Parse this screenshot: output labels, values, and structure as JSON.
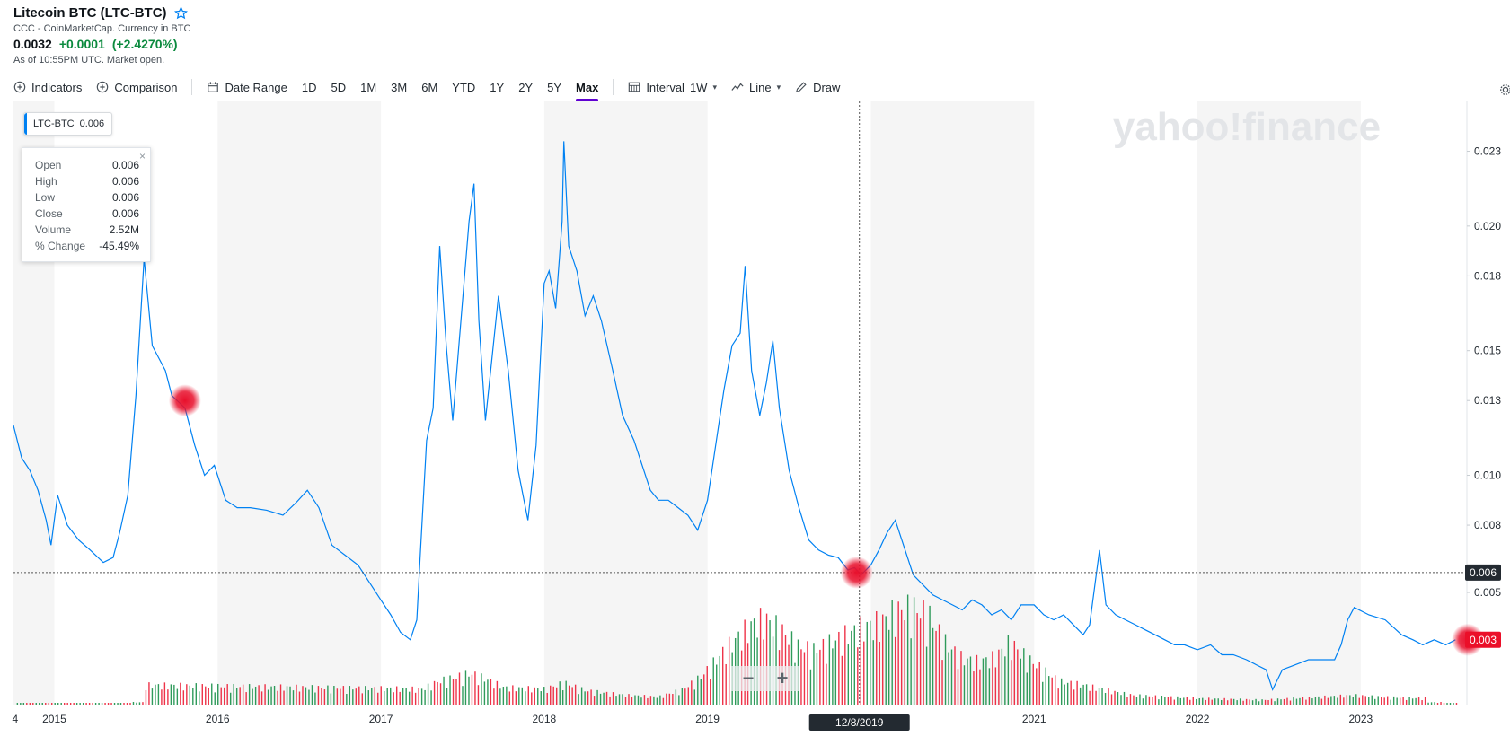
{
  "header": {
    "title": "Litecoin BTC (LTC-BTC)",
    "subtitle": "CCC - CoinMarketCap. Currency in BTC",
    "price": "0.0032",
    "change": "+0.0001",
    "change_pct": "(+2.4270%)",
    "as_of": "As of 10:55PM UTC. Market open."
  },
  "toolbar": {
    "indicators": "Indicators",
    "comparison": "Comparison",
    "date_range": "Date Range",
    "ranges": [
      "1D",
      "5D",
      "1M",
      "3M",
      "6M",
      "YTD",
      "1Y",
      "2Y",
      "5Y",
      "Max"
    ],
    "active_range": "Max",
    "interval_label": "Interval",
    "interval_value": "1W",
    "chart_type": "Line",
    "draw": "Draw"
  },
  "legend_tag": {
    "symbol": "LTC-BTC",
    "value": "0.006"
  },
  "tooltip": {
    "rows": [
      {
        "k": "Open",
        "v": "0.006"
      },
      {
        "k": "High",
        "v": "0.006"
      },
      {
        "k": "Low",
        "v": "0.006"
      },
      {
        "k": "Close",
        "v": "0.006"
      },
      {
        "k": "Volume",
        "v": "2.52M"
      },
      {
        "k": "% Change",
        "v": "-45.49%"
      }
    ]
  },
  "watermark": "yahoo!finance",
  "crosshair": {
    "date_label": "12/8/2019",
    "value_label": "0.006"
  },
  "last_price_label": "0.003",
  "zoom": {
    "minus": "−",
    "plus": "+"
  },
  "colors": {
    "line": "#0081f2",
    "up": "#0b8a3e",
    "down": "#eb0f29",
    "active_tab": "#6001d2",
    "crosshair_marker": "#e8102c"
  },
  "chart_data": {
    "type": "line",
    "title": "Litecoin BTC (LTC-BTC)",
    "xlabel": "",
    "ylabel": "",
    "x_ticks": [
      "4",
      "2015",
      "2016",
      "2017",
      "2018",
      "2019",
      "2021",
      "2022",
      "2023"
    ],
    "y_ticks": [
      "0.003",
      "0.005",
      "0.008",
      "0.010",
      "0.013",
      "0.015",
      "0.018",
      "0.020",
      "0.023"
    ],
    "ylim": [
      0.0006,
      0.0248
    ],
    "xlim": [
      2014.75,
      2023.65
    ],
    "grid": false,
    "series": [
      {
        "name": "LTC-BTC",
        "points": [
          [
            2014.75,
            0.0118
          ],
          [
            2014.8,
            0.0105
          ],
          [
            2014.85,
            0.01
          ],
          [
            2014.9,
            0.0092
          ],
          [
            2014.95,
            0.008
          ],
          [
            2014.98,
            0.007
          ],
          [
            2015.02,
            0.009
          ],
          [
            2015.08,
            0.0078
          ],
          [
            2015.15,
            0.0072
          ],
          [
            2015.22,
            0.0068
          ],
          [
            2015.3,
            0.0063
          ],
          [
            2015.36,
            0.0065
          ],
          [
            2015.4,
            0.0075
          ],
          [
            2015.45,
            0.009
          ],
          [
            2015.5,
            0.013
          ],
          [
            2015.55,
            0.0185
          ],
          [
            2015.6,
            0.015
          ],
          [
            2015.64,
            0.0145
          ],
          [
            2015.68,
            0.014
          ],
          [
            2015.72,
            0.013
          ],
          [
            2015.8,
            0.0125
          ],
          [
            2015.86,
            0.011
          ],
          [
            2015.92,
            0.0098
          ],
          [
            2015.98,
            0.0102
          ],
          [
            2016.05,
            0.0088
          ],
          [
            2016.12,
            0.0085
          ],
          [
            2016.2,
            0.0085
          ],
          [
            2016.3,
            0.0084
          ],
          [
            2016.4,
            0.0082
          ],
          [
            2016.48,
            0.0087
          ],
          [
            2016.55,
            0.0092
          ],
          [
            2016.62,
            0.0085
          ],
          [
            2016.7,
            0.007
          ],
          [
            2016.78,
            0.0066
          ],
          [
            2016.86,
            0.0062
          ],
          [
            2016.93,
            0.0055
          ],
          [
            2017.0,
            0.0048
          ],
          [
            2017.06,
            0.0042
          ],
          [
            2017.12,
            0.0035
          ],
          [
            2017.18,
            0.0032
          ],
          [
            2017.22,
            0.004
          ],
          [
            2017.24,
            0.0065
          ],
          [
            2017.28,
            0.0112
          ],
          [
            2017.32,
            0.0125
          ],
          [
            2017.36,
            0.019
          ],
          [
            2017.4,
            0.015
          ],
          [
            2017.44,
            0.012
          ],
          [
            2017.49,
            0.016
          ],
          [
            2017.54,
            0.02
          ],
          [
            2017.57,
            0.0215
          ],
          [
            2017.6,
            0.016
          ],
          [
            2017.64,
            0.012
          ],
          [
            2017.68,
            0.0145
          ],
          [
            2017.72,
            0.017
          ],
          [
            2017.78,
            0.014
          ],
          [
            2017.84,
            0.01
          ],
          [
            2017.9,
            0.008
          ],
          [
            2017.95,
            0.011
          ],
          [
            2018.0,
            0.0175
          ],
          [
            2018.03,
            0.018
          ],
          [
            2018.07,
            0.0165
          ],
          [
            2018.11,
            0.02
          ],
          [
            2018.12,
            0.0232
          ],
          [
            2018.15,
            0.019
          ],
          [
            2018.2,
            0.018
          ],
          [
            2018.25,
            0.0162
          ],
          [
            2018.3,
            0.017
          ],
          [
            2018.35,
            0.016
          ],
          [
            2018.42,
            0.014
          ],
          [
            2018.48,
            0.0122
          ],
          [
            2018.55,
            0.0112
          ],
          [
            2018.6,
            0.0102
          ],
          [
            2018.65,
            0.0092
          ],
          [
            2018.7,
            0.0088
          ],
          [
            2018.76,
            0.0088
          ],
          [
            2018.82,
            0.0085
          ],
          [
            2018.88,
            0.0082
          ],
          [
            2018.94,
            0.0076
          ],
          [
            2019.0,
            0.0088
          ],
          [
            2019.05,
            0.011
          ],
          [
            2019.1,
            0.0132
          ],
          [
            2019.15,
            0.015
          ],
          [
            2019.2,
            0.0155
          ],
          [
            2019.23,
            0.0182
          ],
          [
            2019.27,
            0.014
          ],
          [
            2019.32,
            0.0122
          ],
          [
            2019.36,
            0.0135
          ],
          [
            2019.4,
            0.0152
          ],
          [
            2019.44,
            0.0125
          ],
          [
            2019.5,
            0.01
          ],
          [
            2019.56,
            0.0085
          ],
          [
            2019.62,
            0.0072
          ],
          [
            2019.68,
            0.0068
          ],
          [
            2019.74,
            0.0066
          ],
          [
            2019.8,
            0.0065
          ],
          [
            2019.86,
            0.006
          ],
          [
            2019.9,
            0.0061
          ],
          [
            2019.94,
            0.0058
          ],
          [
            2020.0,
            0.0062
          ],
          [
            2020.05,
            0.0068
          ],
          [
            2020.1,
            0.0075
          ],
          [
            2020.15,
            0.008
          ],
          [
            2020.2,
            0.007
          ],
          [
            2020.26,
            0.0058
          ],
          [
            2020.32,
            0.0054
          ],
          [
            2020.38,
            0.005
          ],
          [
            2020.44,
            0.0048
          ],
          [
            2020.5,
            0.0046
          ],
          [
            2020.56,
            0.0044
          ],
          [
            2020.62,
            0.0048
          ],
          [
            2020.68,
            0.0046
          ],
          [
            2020.74,
            0.0042
          ],
          [
            2020.8,
            0.0044
          ],
          [
            2020.86,
            0.004
          ],
          [
            2020.92,
            0.0046
          ],
          [
            2021.0,
            0.0046
          ],
          [
            2021.06,
            0.0042
          ],
          [
            2021.12,
            0.004
          ],
          [
            2021.18,
            0.0042
          ],
          [
            2021.24,
            0.0038
          ],
          [
            2021.3,
            0.0034
          ],
          [
            2021.34,
            0.0038
          ],
          [
            2021.4,
            0.0068
          ],
          [
            2021.44,
            0.0046
          ],
          [
            2021.5,
            0.0042
          ],
          [
            2021.56,
            0.004
          ],
          [
            2021.62,
            0.0038
          ],
          [
            2021.68,
            0.0036
          ],
          [
            2021.74,
            0.0034
          ],
          [
            2021.8,
            0.0032
          ],
          [
            2021.86,
            0.003
          ],
          [
            2021.92,
            0.003
          ],
          [
            2022.0,
            0.0028
          ],
          [
            2022.08,
            0.003
          ],
          [
            2022.15,
            0.0026
          ],
          [
            2022.22,
            0.0026
          ],
          [
            2022.3,
            0.0024
          ],
          [
            2022.36,
            0.0022
          ],
          [
            2022.42,
            0.002
          ],
          [
            2022.46,
            0.0012
          ],
          [
            2022.52,
            0.002
          ],
          [
            2022.6,
            0.0022
          ],
          [
            2022.68,
            0.0024
          ],
          [
            2022.76,
            0.0024
          ],
          [
            2022.84,
            0.0024
          ],
          [
            2022.88,
            0.003
          ],
          [
            2022.92,
            0.004
          ],
          [
            2022.96,
            0.0045
          ],
          [
            2023.05,
            0.0042
          ],
          [
            2023.15,
            0.004
          ],
          [
            2023.25,
            0.0034
          ],
          [
            2023.32,
            0.0032
          ],
          [
            2023.38,
            0.003
          ],
          [
            2023.45,
            0.0032
          ],
          [
            2023.52,
            0.003
          ],
          [
            2023.58,
            0.0032
          ]
        ]
      }
    ],
    "volume": [
      [
        2015.55,
        0.25
      ],
      [
        2017.25,
        0.2
      ],
      [
        2017.35,
        0.3
      ],
      [
        2017.45,
        0.35
      ],
      [
        2017.55,
        0.4
      ],
      [
        2017.65,
        0.32
      ],
      [
        2017.75,
        0.22
      ],
      [
        2018.0,
        0.2
      ],
      [
        2018.12,
        0.28
      ],
      [
        2018.25,
        0.18
      ],
      [
        2018.5,
        0.12
      ],
      [
        2018.7,
        0.1
      ],
      [
        2018.85,
        0.2
      ],
      [
        2018.95,
        0.35
      ],
      [
        2019.02,
        0.5
      ],
      [
        2019.1,
        0.7
      ],
      [
        2019.2,
        0.9
      ],
      [
        2019.28,
        1.05
      ],
      [
        2019.35,
        1.1
      ],
      [
        2019.45,
        0.95
      ],
      [
        2019.55,
        0.75
      ],
      [
        2019.65,
        0.7
      ],
      [
        2019.75,
        0.8
      ],
      [
        2019.85,
        0.9
      ],
      [
        2019.95,
        1.0
      ],
      [
        2020.05,
        1.05
      ],
      [
        2020.15,
        1.2
      ],
      [
        2020.25,
        1.25
      ],
      [
        2020.35,
        1.15
      ],
      [
        2020.45,
        0.8
      ],
      [
        2020.55,
        0.6
      ],
      [
        2020.65,
        0.55
      ],
      [
        2020.75,
        0.6
      ],
      [
        2020.85,
        0.8
      ],
      [
        2020.95,
        0.6
      ],
      [
        2021.05,
        0.45
      ],
      [
        2021.15,
        0.3
      ],
      [
        2021.3,
        0.25
      ],
      [
        2021.45,
        0.18
      ],
      [
        2021.6,
        0.12
      ],
      [
        2021.8,
        0.1
      ],
      [
        2022.0,
        0.08
      ],
      [
        2022.4,
        0.06
      ],
      [
        2022.95,
        0.12
      ],
      [
        2023.1,
        0.1
      ],
      [
        2023.4,
        0.08
      ]
    ]
  }
}
